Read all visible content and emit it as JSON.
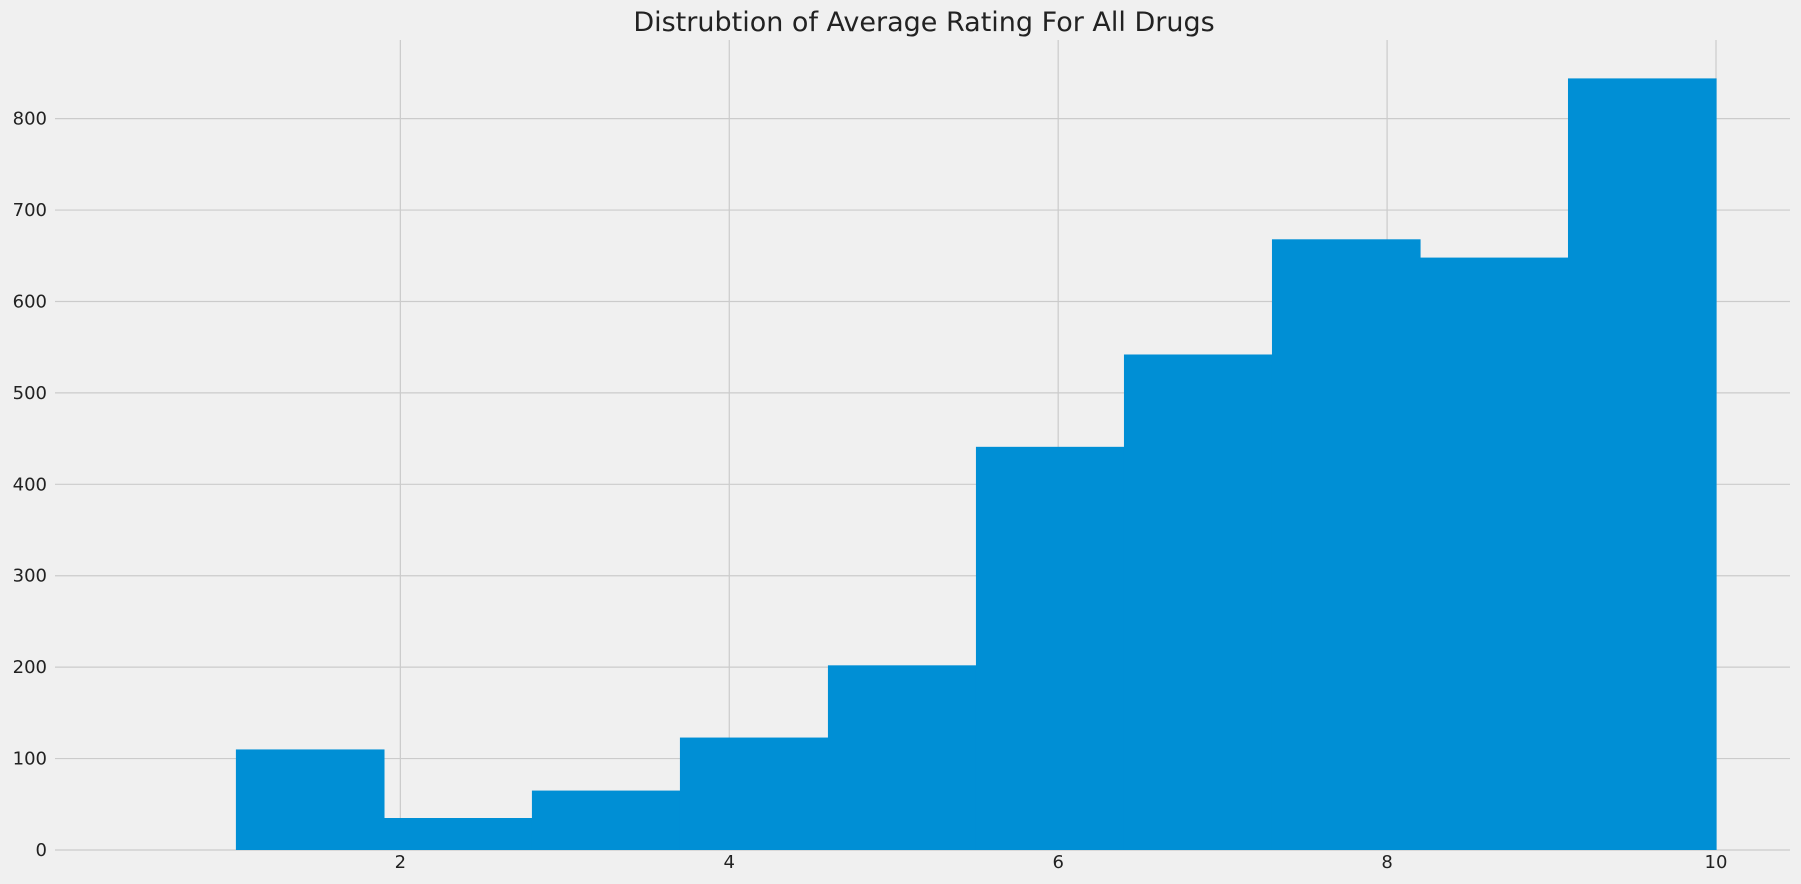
{
  "chart_data": {
    "type": "bar",
    "title": "Distrubtion of Average Rating For All Drugs",
    "xlabel": "",
    "ylabel": "",
    "bin_edges": [
      1.0,
      1.9,
      2.8,
      3.7,
      4.6,
      5.5,
      6.4,
      7.3,
      8.2,
      9.1,
      10.0
    ],
    "values": [
      110,
      35,
      65,
      123,
      202,
      441,
      542,
      668,
      648,
      844
    ],
    "xlim": [
      -0.1,
      10.45
    ],
    "ylim": [
      0,
      886
    ],
    "x_ticks": [
      2,
      4,
      6,
      8,
      10
    ],
    "y_ticks": [
      0,
      100,
      200,
      300,
      400,
      500,
      600,
      700,
      800
    ],
    "grid": true,
    "bar_color": "#008fd5",
    "background_color": "#f0f0f0",
    "grid_color": "#cbcbcb"
  }
}
